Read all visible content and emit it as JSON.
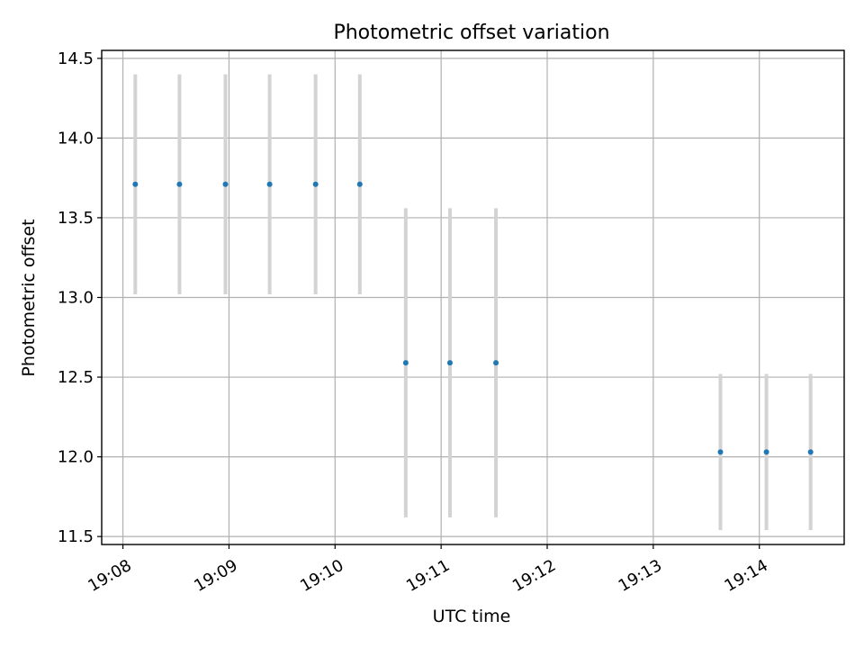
{
  "chart_data": {
    "type": "scatter",
    "title": "Photometric offset variation",
    "xlabel": "UTC time",
    "ylabel": "Photometric offset",
    "x_tick_labels": [
      "19:08",
      "19:09",
      "19:10",
      "19:11",
      "19:12",
      "19:13",
      "19:14"
    ],
    "y_tick_labels": [
      "11.5",
      "12.0",
      "12.5",
      "13.0",
      "13.5",
      "14.0",
      "14.5"
    ],
    "y_ticks": [
      11.5,
      12.0,
      12.5,
      13.0,
      13.5,
      14.0,
      14.5
    ],
    "xlim": [
      "19:07:48",
      "19:14:48"
    ],
    "ylim": [
      11.45,
      14.55
    ],
    "grid": true,
    "marker_color": "#1f77b4",
    "errorbar_color": "#d3d3d3",
    "points": [
      {
        "time": "19:08:07",
        "y": 13.71,
        "err": 0.69
      },
      {
        "time": "19:08:32",
        "y": 13.71,
        "err": 0.69
      },
      {
        "time": "19:08:58",
        "y": 13.71,
        "err": 0.69
      },
      {
        "time": "19:09:23",
        "y": 13.71,
        "err": 0.69
      },
      {
        "time": "19:09:49",
        "y": 13.71,
        "err": 0.69
      },
      {
        "time": "19:10:14",
        "y": 13.71,
        "err": 0.69
      },
      {
        "time": "19:10:40",
        "y": 12.59,
        "err": 0.97
      },
      {
        "time": "19:11:05",
        "y": 12.59,
        "err": 0.97
      },
      {
        "time": "19:11:31",
        "y": 12.59,
        "err": 0.97
      },
      {
        "time": "19:13:38",
        "y": 12.03,
        "err": 0.49
      },
      {
        "time": "19:14:04",
        "y": 12.03,
        "err": 0.49
      },
      {
        "time": "19:14:29",
        "y": 12.03,
        "err": 0.49
      }
    ]
  }
}
